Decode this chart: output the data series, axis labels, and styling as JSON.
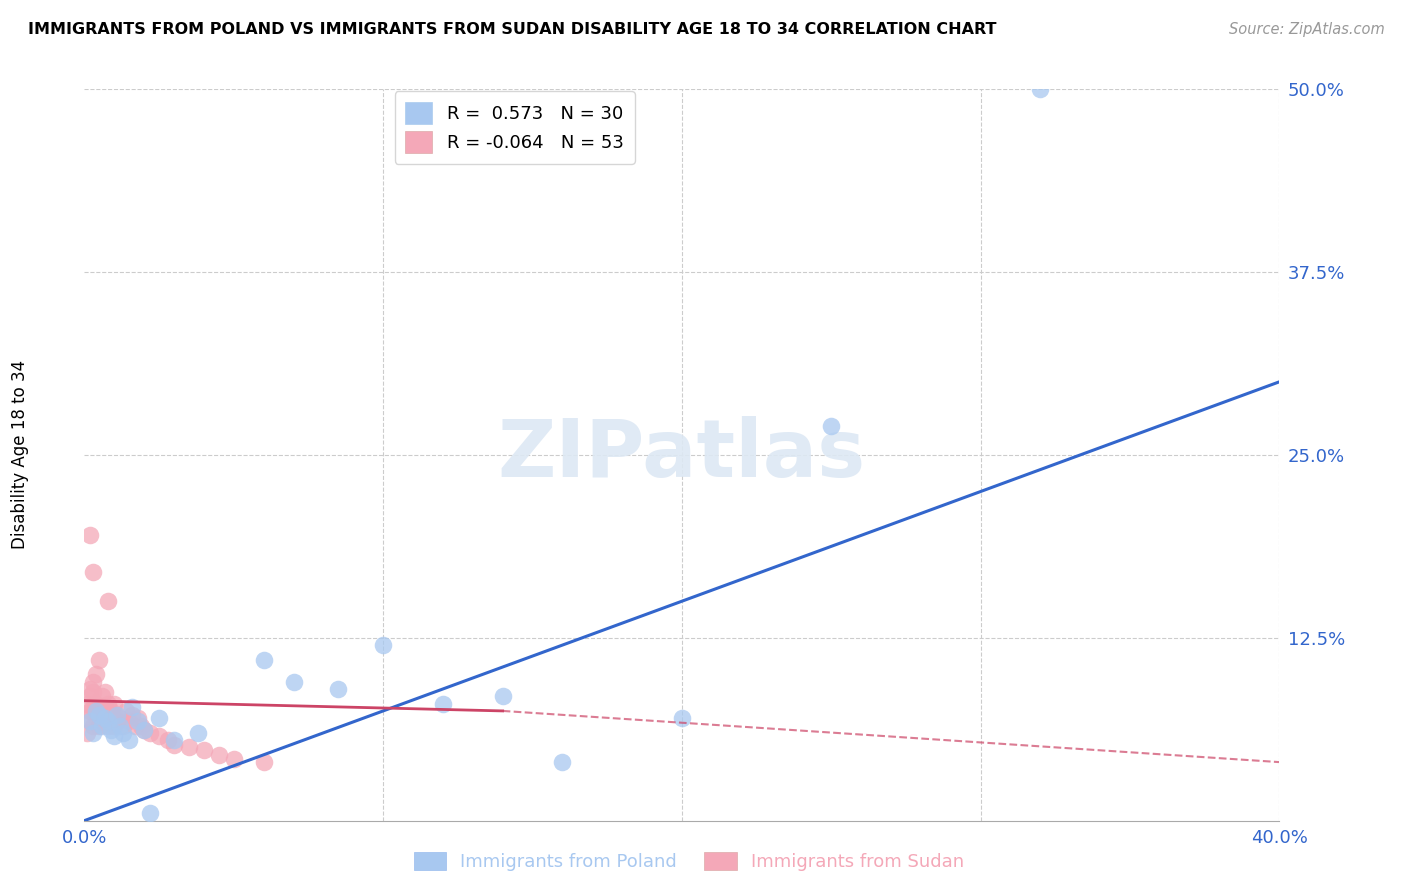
{
  "title": "IMMIGRANTS FROM POLAND VS IMMIGRANTS FROM SUDAN DISABILITY AGE 18 TO 34 CORRELATION CHART",
  "source": "Source: ZipAtlas.com",
  "ylabel": "Disability Age 18 to 34",
  "xlim": [
    0.0,
    0.4
  ],
  "ylim": [
    0.0,
    0.5
  ],
  "poland_color": "#a8c8f0",
  "sudan_color": "#f4a8b8",
  "poland_line_color": "#3366cc",
  "sudan_line_color": "#cc4466",
  "poland_R": 0.573,
  "poland_N": 30,
  "sudan_R": -0.064,
  "sudan_N": 53,
  "poland_scatter_x": [
    0.002,
    0.003,
    0.004,
    0.005,
    0.006,
    0.007,
    0.008,
    0.009,
    0.01,
    0.011,
    0.012,
    0.013,
    0.015,
    0.016,
    0.018,
    0.02,
    0.022,
    0.025,
    0.03,
    0.038,
    0.06,
    0.07,
    0.085,
    0.1,
    0.12,
    0.14,
    0.16,
    0.2,
    0.25,
    0.32
  ],
  "poland_scatter_y": [
    0.068,
    0.06,
    0.075,
    0.072,
    0.065,
    0.07,
    0.068,
    0.062,
    0.058,
    0.072,
    0.065,
    0.06,
    0.055,
    0.078,
    0.068,
    0.062,
    0.005,
    0.07,
    0.055,
    0.06,
    0.11,
    0.095,
    0.09,
    0.12,
    0.08,
    0.085,
    0.04,
    0.07,
    0.27,
    0.5
  ],
  "sudan_scatter_x": [
    0.001,
    0.001,
    0.001,
    0.002,
    0.002,
    0.002,
    0.003,
    0.003,
    0.003,
    0.003,
    0.004,
    0.004,
    0.004,
    0.005,
    0.005,
    0.005,
    0.005,
    0.006,
    0.006,
    0.006,
    0.007,
    0.007,
    0.007,
    0.008,
    0.008,
    0.008,
    0.009,
    0.009,
    0.01,
    0.01,
    0.01,
    0.011,
    0.012,
    0.013,
    0.014,
    0.015,
    0.016,
    0.017,
    0.018,
    0.019,
    0.02,
    0.022,
    0.025,
    0.028,
    0.03,
    0.035,
    0.04,
    0.045,
    0.05,
    0.06,
    0.002,
    0.003,
    0.008
  ],
  "sudan_scatter_y": [
    0.06,
    0.07,
    0.08,
    0.075,
    0.085,
    0.09,
    0.065,
    0.078,
    0.088,
    0.095,
    0.07,
    0.08,
    0.1,
    0.065,
    0.072,
    0.078,
    0.11,
    0.068,
    0.075,
    0.085,
    0.07,
    0.078,
    0.088,
    0.065,
    0.072,
    0.08,
    0.068,
    0.075,
    0.065,
    0.072,
    0.08,
    0.068,
    0.07,
    0.065,
    0.075,
    0.068,
    0.072,
    0.065,
    0.07,
    0.065,
    0.062,
    0.06,
    0.058,
    0.055,
    0.052,
    0.05,
    0.048,
    0.045,
    0.042,
    0.04,
    0.195,
    0.17,
    0.15
  ]
}
